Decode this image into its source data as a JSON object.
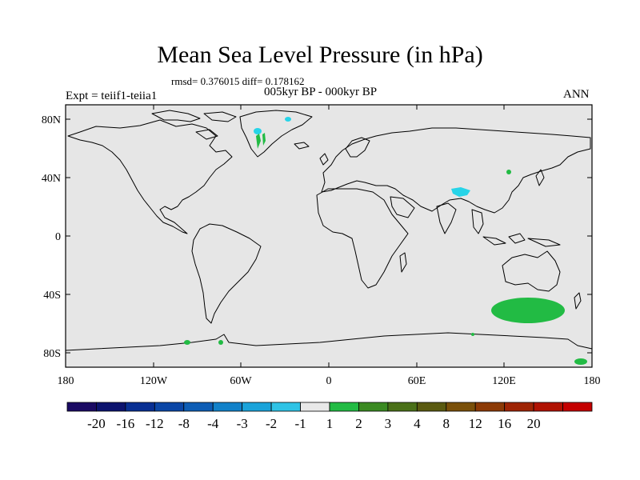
{
  "title": "Mean Sea Level Pressure (in hPa)",
  "stats_line": "rmsd= 0.376015 diff= 0.178162",
  "period_line": "005kyr BP - 000kyr BP",
  "experiment_label": "Expt = teiif1-teiia1",
  "season_label": "ANN",
  "map": {
    "background_color": "#e6e6e6",
    "lat_ticks": [
      "80N",
      "40N",
      "0",
      "40S",
      "80S"
    ],
    "lon_ticks": [
      "180",
      "120W",
      "60W",
      "0",
      "60E",
      "120E",
      "180"
    ]
  },
  "colorbar": {
    "colors": [
      "#1a0a63",
      "#0c136e",
      "#082f93",
      "#0b46a6",
      "#0d5db5",
      "#1181c9",
      "#1aa3da",
      "#2fc3e6",
      "#e8e8e8",
      "#22bb44",
      "#3a8a22",
      "#4a7018",
      "#5a5a10",
      "#7a500a",
      "#8c3a06",
      "#9e2404",
      "#b01202",
      "#c40000"
    ],
    "labels": [
      "-20",
      "-16",
      "-12",
      "-8",
      "-4",
      "-3",
      "-2",
      "-1",
      "1",
      "2",
      "3",
      "4",
      "8",
      "12",
      "16",
      "20"
    ]
  },
  "anomaly_colors": {
    "negative_small": "#27d4e8",
    "positive_small": "#22bb44"
  }
}
